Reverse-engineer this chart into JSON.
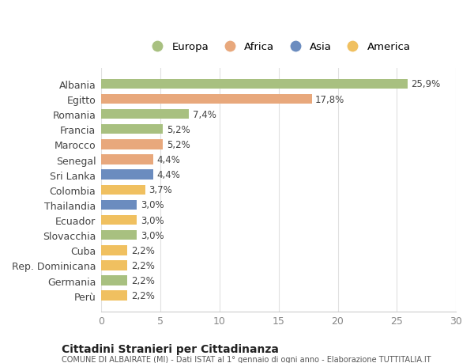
{
  "countries": [
    "Albania",
    "Egitto",
    "Romania",
    "Francia",
    "Marocco",
    "Senegal",
    "Sri Lanka",
    "Colombia",
    "Thailandia",
    "Ecuador",
    "Slovacchia",
    "Cuba",
    "Rep. Dominicana",
    "Germania",
    "Perù"
  ],
  "values": [
    25.9,
    17.8,
    7.4,
    5.2,
    5.2,
    4.4,
    4.4,
    3.7,
    3.0,
    3.0,
    3.0,
    2.2,
    2.2,
    2.2,
    2.2
  ],
  "labels": [
    "25,9%",
    "17,8%",
    "7,4%",
    "5,2%",
    "5,2%",
    "4,4%",
    "4,4%",
    "3,7%",
    "3,0%",
    "3,0%",
    "3,0%",
    "2,2%",
    "2,2%",
    "2,2%",
    "2,2%"
  ],
  "continents": [
    "Europa",
    "Africa",
    "Europa",
    "Europa",
    "Africa",
    "Africa",
    "Asia",
    "America",
    "Asia",
    "America",
    "Europa",
    "America",
    "America",
    "Europa",
    "America"
  ],
  "colors": {
    "Europa": "#a8c080",
    "Africa": "#e8a87c",
    "Asia": "#6b8cbf",
    "America": "#f0c060"
  },
  "legend_order": [
    "Europa",
    "Africa",
    "Asia",
    "America"
  ],
  "xlim": [
    0,
    30
  ],
  "xticks": [
    0,
    5,
    10,
    15,
    20,
    25,
    30
  ],
  "title": "Cittadini Stranieri per Cittadinanza",
  "subtitle": "COMUNE DI ALBAIRATE (MI) - Dati ISTAT al 1° gennaio di ogni anno - Elaborazione TUTTITALIA.IT",
  "bg_color": "#ffffff",
  "grid_color": "#e0e0e0",
  "bar_height": 0.65
}
